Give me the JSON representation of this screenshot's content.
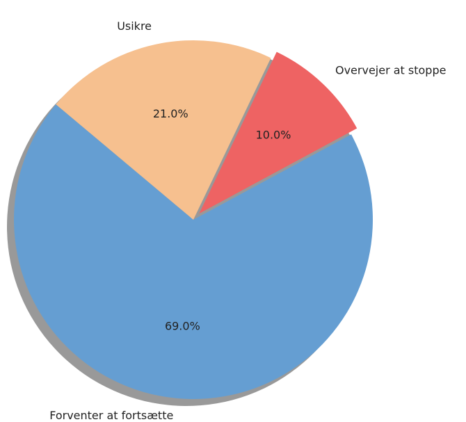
{
  "chart_data": {
    "type": "pie",
    "categories": [
      "Forventer at fortsætte",
      "Overvejer at stoppe",
      "Usikre"
    ],
    "values": [
      69,
      10,
      21
    ],
    "value_labels": [
      "69.0%",
      "10.0%",
      "21.0%"
    ],
    "colors": [
      "#659ed2",
      "#ee6363",
      "#f6c08f"
    ],
    "shadow": true
  }
}
